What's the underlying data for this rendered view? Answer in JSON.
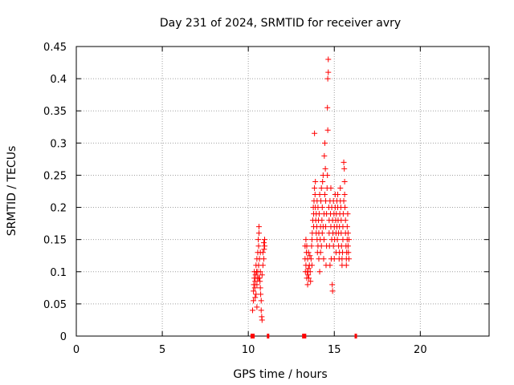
{
  "chart_data": {
    "type": "scatter",
    "title": "Day 231 of 2024, SRMTID for receiver avry",
    "xlabel": "GPS time / hours",
    "ylabel": "SRMTID / TECUs",
    "xlim": [
      0,
      24
    ],
    "ylim": [
      0,
      0.45
    ],
    "xticks": [
      0,
      5,
      10,
      15,
      20
    ],
    "yticks": [
      0,
      0.05,
      0.1,
      0.15,
      0.2,
      0.25,
      0.3,
      0.35,
      0.4,
      0.45
    ],
    "grid": true,
    "marker": "+",
    "color": "#ff0000",
    "series": [
      {
        "name": "SRMTID",
        "points": [
          [
            10.25,
            0.04
          ],
          [
            10.3,
            0.055
          ],
          [
            10.3,
            0.07
          ],
          [
            10.32,
            0.08
          ],
          [
            10.35,
            0.09
          ],
          [
            10.35,
            0.1
          ],
          [
            10.38,
            0.075
          ],
          [
            10.4,
            0.085
          ],
          [
            10.42,
            0.095
          ],
          [
            10.45,
            0.11
          ],
          [
            10.45,
            0.065
          ],
          [
            10.48,
            0.1
          ],
          [
            10.5,
            0.12
          ],
          [
            10.5,
            0.08
          ],
          [
            10.52,
            0.09
          ],
          [
            10.55,
            0.13
          ],
          [
            10.55,
            0.1
          ],
          [
            10.58,
            0.15
          ],
          [
            10.6,
            0.11
          ],
          [
            10.6,
            0.14
          ],
          [
            10.62,
            0.16
          ],
          [
            10.62,
            0.17
          ],
          [
            10.65,
            0.12
          ],
          [
            10.65,
            0.09
          ],
          [
            10.68,
            0.085
          ],
          [
            10.7,
            0.1
          ],
          [
            10.7,
            0.075
          ],
          [
            10.72,
            0.065
          ],
          [
            10.75,
            0.055
          ],
          [
            10.75,
            0.04
          ],
          [
            10.78,
            0.03
          ],
          [
            10.8,
            0.025
          ],
          [
            10.8,
            0.095
          ],
          [
            10.85,
            0.11
          ],
          [
            10.85,
            0.13
          ],
          [
            10.9,
            0.12
          ],
          [
            10.9,
            0.145
          ],
          [
            10.92,
            0.135
          ],
          [
            10.95,
            0.15
          ],
          [
            10.95,
            0.14
          ],
          [
            10.6,
            0.09
          ],
          [
            10.7,
            0.13
          ],
          [
            10.4,
            0.06
          ],
          [
            10.5,
            0.045
          ],
          [
            13.3,
            0.14
          ],
          [
            13.3,
            0.12
          ],
          [
            13.32,
            0.1
          ],
          [
            13.35,
            0.15
          ],
          [
            13.35,
            0.11
          ],
          [
            13.38,
            0.13
          ],
          [
            13.4,
            0.09
          ],
          [
            13.4,
            0.14
          ],
          [
            13.42,
            0.1
          ],
          [
            13.45,
            0.12
          ],
          [
            13.45,
            0.08
          ],
          [
            13.48,
            0.095
          ],
          [
            13.5,
            0.105
          ],
          [
            13.5,
            0.13
          ],
          [
            13.52,
            0.09
          ],
          [
            13.55,
            0.11
          ],
          [
            13.58,
            0.125
          ],
          [
            13.6,
            0.1
          ],
          [
            13.62,
            0.085
          ],
          [
            13.65,
            0.12
          ],
          [
            13.68,
            0.14
          ],
          [
            13.7,
            0.15
          ],
          [
            13.7,
            0.11
          ],
          [
            13.72,
            0.16
          ],
          [
            13.75,
            0.18
          ],
          [
            13.78,
            0.2
          ],
          [
            13.8,
            0.19
          ],
          [
            13.8,
            0.17
          ],
          [
            13.82,
            0.21
          ],
          [
            13.85,
            0.23
          ],
          [
            13.85,
            0.315
          ],
          [
            13.88,
            0.22
          ],
          [
            13.9,
            0.2
          ],
          [
            13.9,
            0.24
          ],
          [
            13.92,
            0.18
          ],
          [
            13.95,
            0.16
          ],
          [
            13.95,
            0.19
          ],
          [
            13.98,
            0.17
          ],
          [
            14.0,
            0.15
          ],
          [
            14.0,
            0.21
          ],
          [
            14.02,
            0.13
          ],
          [
            14.05,
            0.14
          ],
          [
            14.05,
            0.2
          ],
          [
            14.08,
            0.18
          ],
          [
            14.1,
            0.16
          ],
          [
            14.1,
            0.12
          ],
          [
            14.12,
            0.19
          ],
          [
            14.15,
            0.22
          ],
          [
            14.15,
            0.1
          ],
          [
            14.18,
            0.15
          ],
          [
            14.2,
            0.17
          ],
          [
            14.2,
            0.13
          ],
          [
            14.22,
            0.21
          ],
          [
            14.25,
            0.23
          ],
          [
            14.25,
            0.14
          ],
          [
            14.28,
            0.18
          ],
          [
            14.3,
            0.16
          ],
          [
            14.3,
            0.2
          ],
          [
            14.32,
            0.24
          ],
          [
            14.35,
            0.25
          ],
          [
            14.35,
            0.17
          ],
          [
            14.38,
            0.12
          ],
          [
            14.4,
            0.15
          ],
          [
            14.4,
            0.19
          ],
          [
            14.42,
            0.28
          ],
          [
            14.45,
            0.3
          ],
          [
            14.45,
            0.22
          ],
          [
            14.48,
            0.26
          ],
          [
            14.5,
            0.21
          ],
          [
            14.5,
            0.17
          ],
          [
            14.52,
            0.11
          ],
          [
            14.55,
            0.14
          ],
          [
            14.55,
            0.19
          ],
          [
            14.58,
            0.23
          ],
          [
            14.6,
            0.25
          ],
          [
            14.6,
            0.355
          ],
          [
            14.62,
            0.32
          ],
          [
            14.62,
            0.4
          ],
          [
            14.65,
            0.41
          ],
          [
            14.65,
            0.43
          ],
          [
            14.68,
            0.2
          ],
          [
            14.7,
            0.18
          ],
          [
            14.7,
            0.16
          ],
          [
            14.72,
            0.14
          ],
          [
            14.75,
            0.11
          ],
          [
            14.75,
            0.21
          ],
          [
            14.78,
            0.19
          ],
          [
            14.8,
            0.17
          ],
          [
            14.8,
            0.23
          ],
          [
            14.82,
            0.12
          ],
          [
            14.85,
            0.15
          ],
          [
            14.85,
            0.2
          ],
          [
            14.88,
            0.08
          ],
          [
            14.9,
            0.07
          ],
          [
            14.9,
            0.18
          ],
          [
            14.92,
            0.16
          ],
          [
            14.95,
            0.21
          ],
          [
            14.95,
            0.14
          ],
          [
            14.98,
            0.19
          ],
          [
            15.0,
            0.17
          ],
          [
            15.0,
            0.12
          ],
          [
            15.02,
            0.15
          ],
          [
            15.05,
            0.2
          ],
          [
            15.05,
            0.22
          ],
          [
            15.08,
            0.18
          ],
          [
            15.1,
            0.16
          ],
          [
            15.1,
            0.13
          ],
          [
            15.12,
            0.19
          ],
          [
            15.15,
            0.21
          ],
          [
            15.15,
            0.17
          ],
          [
            15.18,
            0.15
          ],
          [
            15.2,
            0.2
          ],
          [
            15.2,
            0.22
          ],
          [
            15.22,
            0.18
          ],
          [
            15.25,
            0.16
          ],
          [
            15.25,
            0.14
          ],
          [
            15.28,
            0.12
          ],
          [
            15.3,
            0.13
          ],
          [
            15.3,
            0.17
          ],
          [
            15.32,
            0.19
          ],
          [
            15.35,
            0.21
          ],
          [
            15.35,
            0.23
          ],
          [
            15.38,
            0.2
          ],
          [
            15.4,
            0.18
          ],
          [
            15.4,
            0.16
          ],
          [
            15.42,
            0.14
          ],
          [
            15.45,
            0.12
          ],
          [
            15.45,
            0.11
          ],
          [
            15.48,
            0.13
          ],
          [
            15.5,
            0.15
          ],
          [
            15.5,
            0.17
          ],
          [
            15.52,
            0.19
          ],
          [
            15.55,
            0.21
          ],
          [
            15.55,
            0.27
          ],
          [
            15.58,
            0.26
          ],
          [
            15.6,
            0.24
          ],
          [
            15.6,
            0.22
          ],
          [
            15.62,
            0.2
          ],
          [
            15.65,
            0.18
          ],
          [
            15.65,
            0.16
          ],
          [
            15.68,
            0.14
          ],
          [
            15.7,
            0.12
          ],
          [
            15.7,
            0.11
          ],
          [
            15.72,
            0.13
          ],
          [
            15.75,
            0.15
          ],
          [
            15.75,
            0.17
          ],
          [
            15.78,
            0.19
          ],
          [
            15.8,
            0.16
          ],
          [
            15.8,
            0.14
          ],
          [
            15.82,
            0.13
          ],
          [
            15.85,
            0.15
          ],
          [
            15.85,
            0.12
          ]
        ]
      }
    ],
    "bottom_markers": [
      [
        10.2,
        0
      ],
      [
        10.25,
        0
      ],
      [
        10.3,
        0
      ],
      [
        11.15,
        0
      ],
      [
        13.2,
        0
      ],
      [
        13.25,
        0
      ],
      [
        13.3,
        0
      ],
      [
        16.25,
        0
      ]
    ]
  }
}
